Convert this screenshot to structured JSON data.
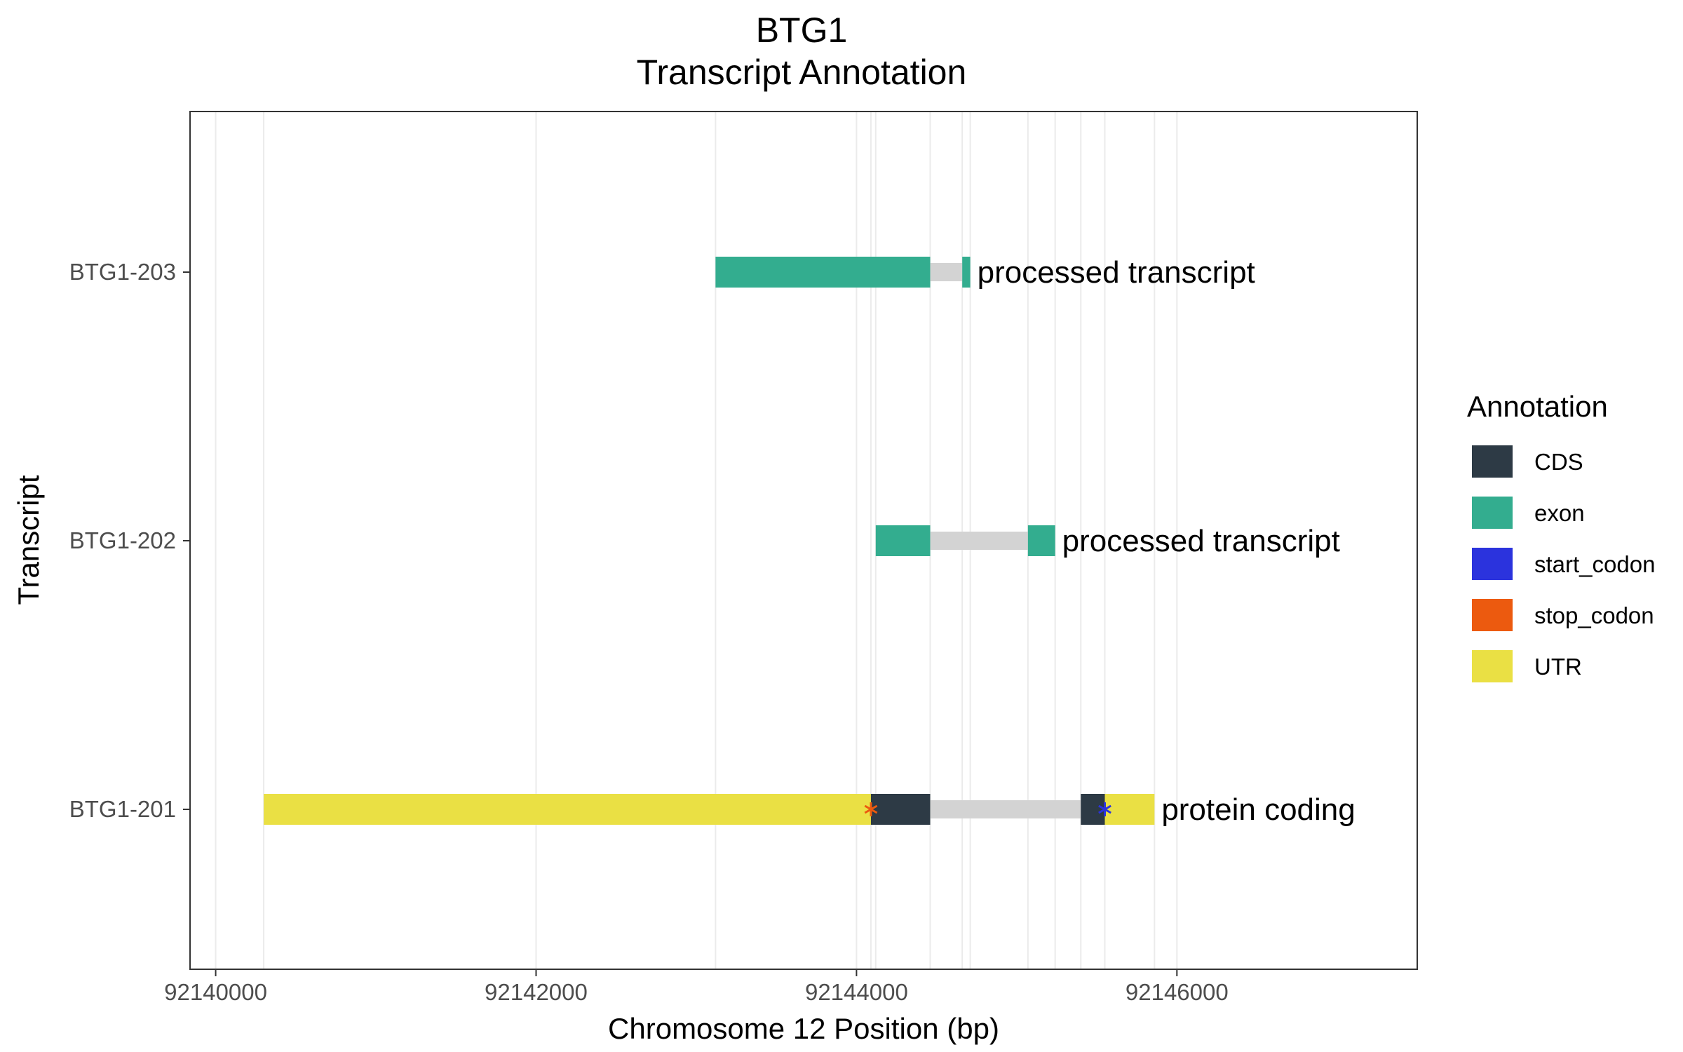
{
  "chart_data": {
    "type": "bar",
    "title": "BTG1",
    "subtitle": "Transcript Annotation",
    "xlabel": "Chromosome 12 Position (bp)",
    "ylabel": "Transcript",
    "xlim": [
      92139840,
      92147500
    ],
    "x_ticks": [
      92140000,
      92142000,
      92144000,
      92146000
    ],
    "grid": true,
    "legend_position": "right",
    "legend_title": "Annotation",
    "colors": {
      "CDS": "#2d3a45",
      "exon": "#33ad8f",
      "start_codon": "#2b33dd",
      "stop_codon": "#ec5a0f",
      "UTR": "#eae044",
      "intron": "#d3d3d3"
    },
    "legend": [
      {
        "key": "CDS",
        "label": "CDS"
      },
      {
        "key": "exon",
        "label": "exon"
      },
      {
        "key": "start_codon",
        "label": "start_codon"
      },
      {
        "key": "stop_codon",
        "label": "stop_codon"
      },
      {
        "key": "UTR",
        "label": "UTR"
      }
    ],
    "transcripts": [
      {
        "name": "BTG1-203",
        "biotype": "processed transcript",
        "introns": [
          [
            92144460,
            92144660
          ]
        ],
        "segments": [
          {
            "type": "exon",
            "start": 92143120,
            "end": 92144460
          },
          {
            "type": "exon",
            "start": 92144660,
            "end": 92144710
          }
        ],
        "codons": []
      },
      {
        "name": "BTG1-202",
        "biotype": "processed transcript",
        "introns": [
          [
            92144460,
            92145070
          ]
        ],
        "segments": [
          {
            "type": "exon",
            "start": 92144120,
            "end": 92144460
          },
          {
            "type": "exon",
            "start": 92145070,
            "end": 92145240
          }
        ],
        "codons": []
      },
      {
        "name": "BTG1-201",
        "biotype": "protein coding",
        "introns": [
          [
            92144460,
            92145400
          ]
        ],
        "segments": [
          {
            "type": "UTR",
            "start": 92140300,
            "end": 92144090
          },
          {
            "type": "CDS",
            "start": 92144090,
            "end": 92144460
          },
          {
            "type": "CDS",
            "start": 92145400,
            "end": 92145550
          },
          {
            "type": "UTR",
            "start": 92145550,
            "end": 92145860
          }
        ],
        "codons": [
          {
            "type": "stop_codon",
            "position": 92144090
          },
          {
            "type": "start_codon",
            "position": 92145550
          }
        ]
      }
    ]
  }
}
